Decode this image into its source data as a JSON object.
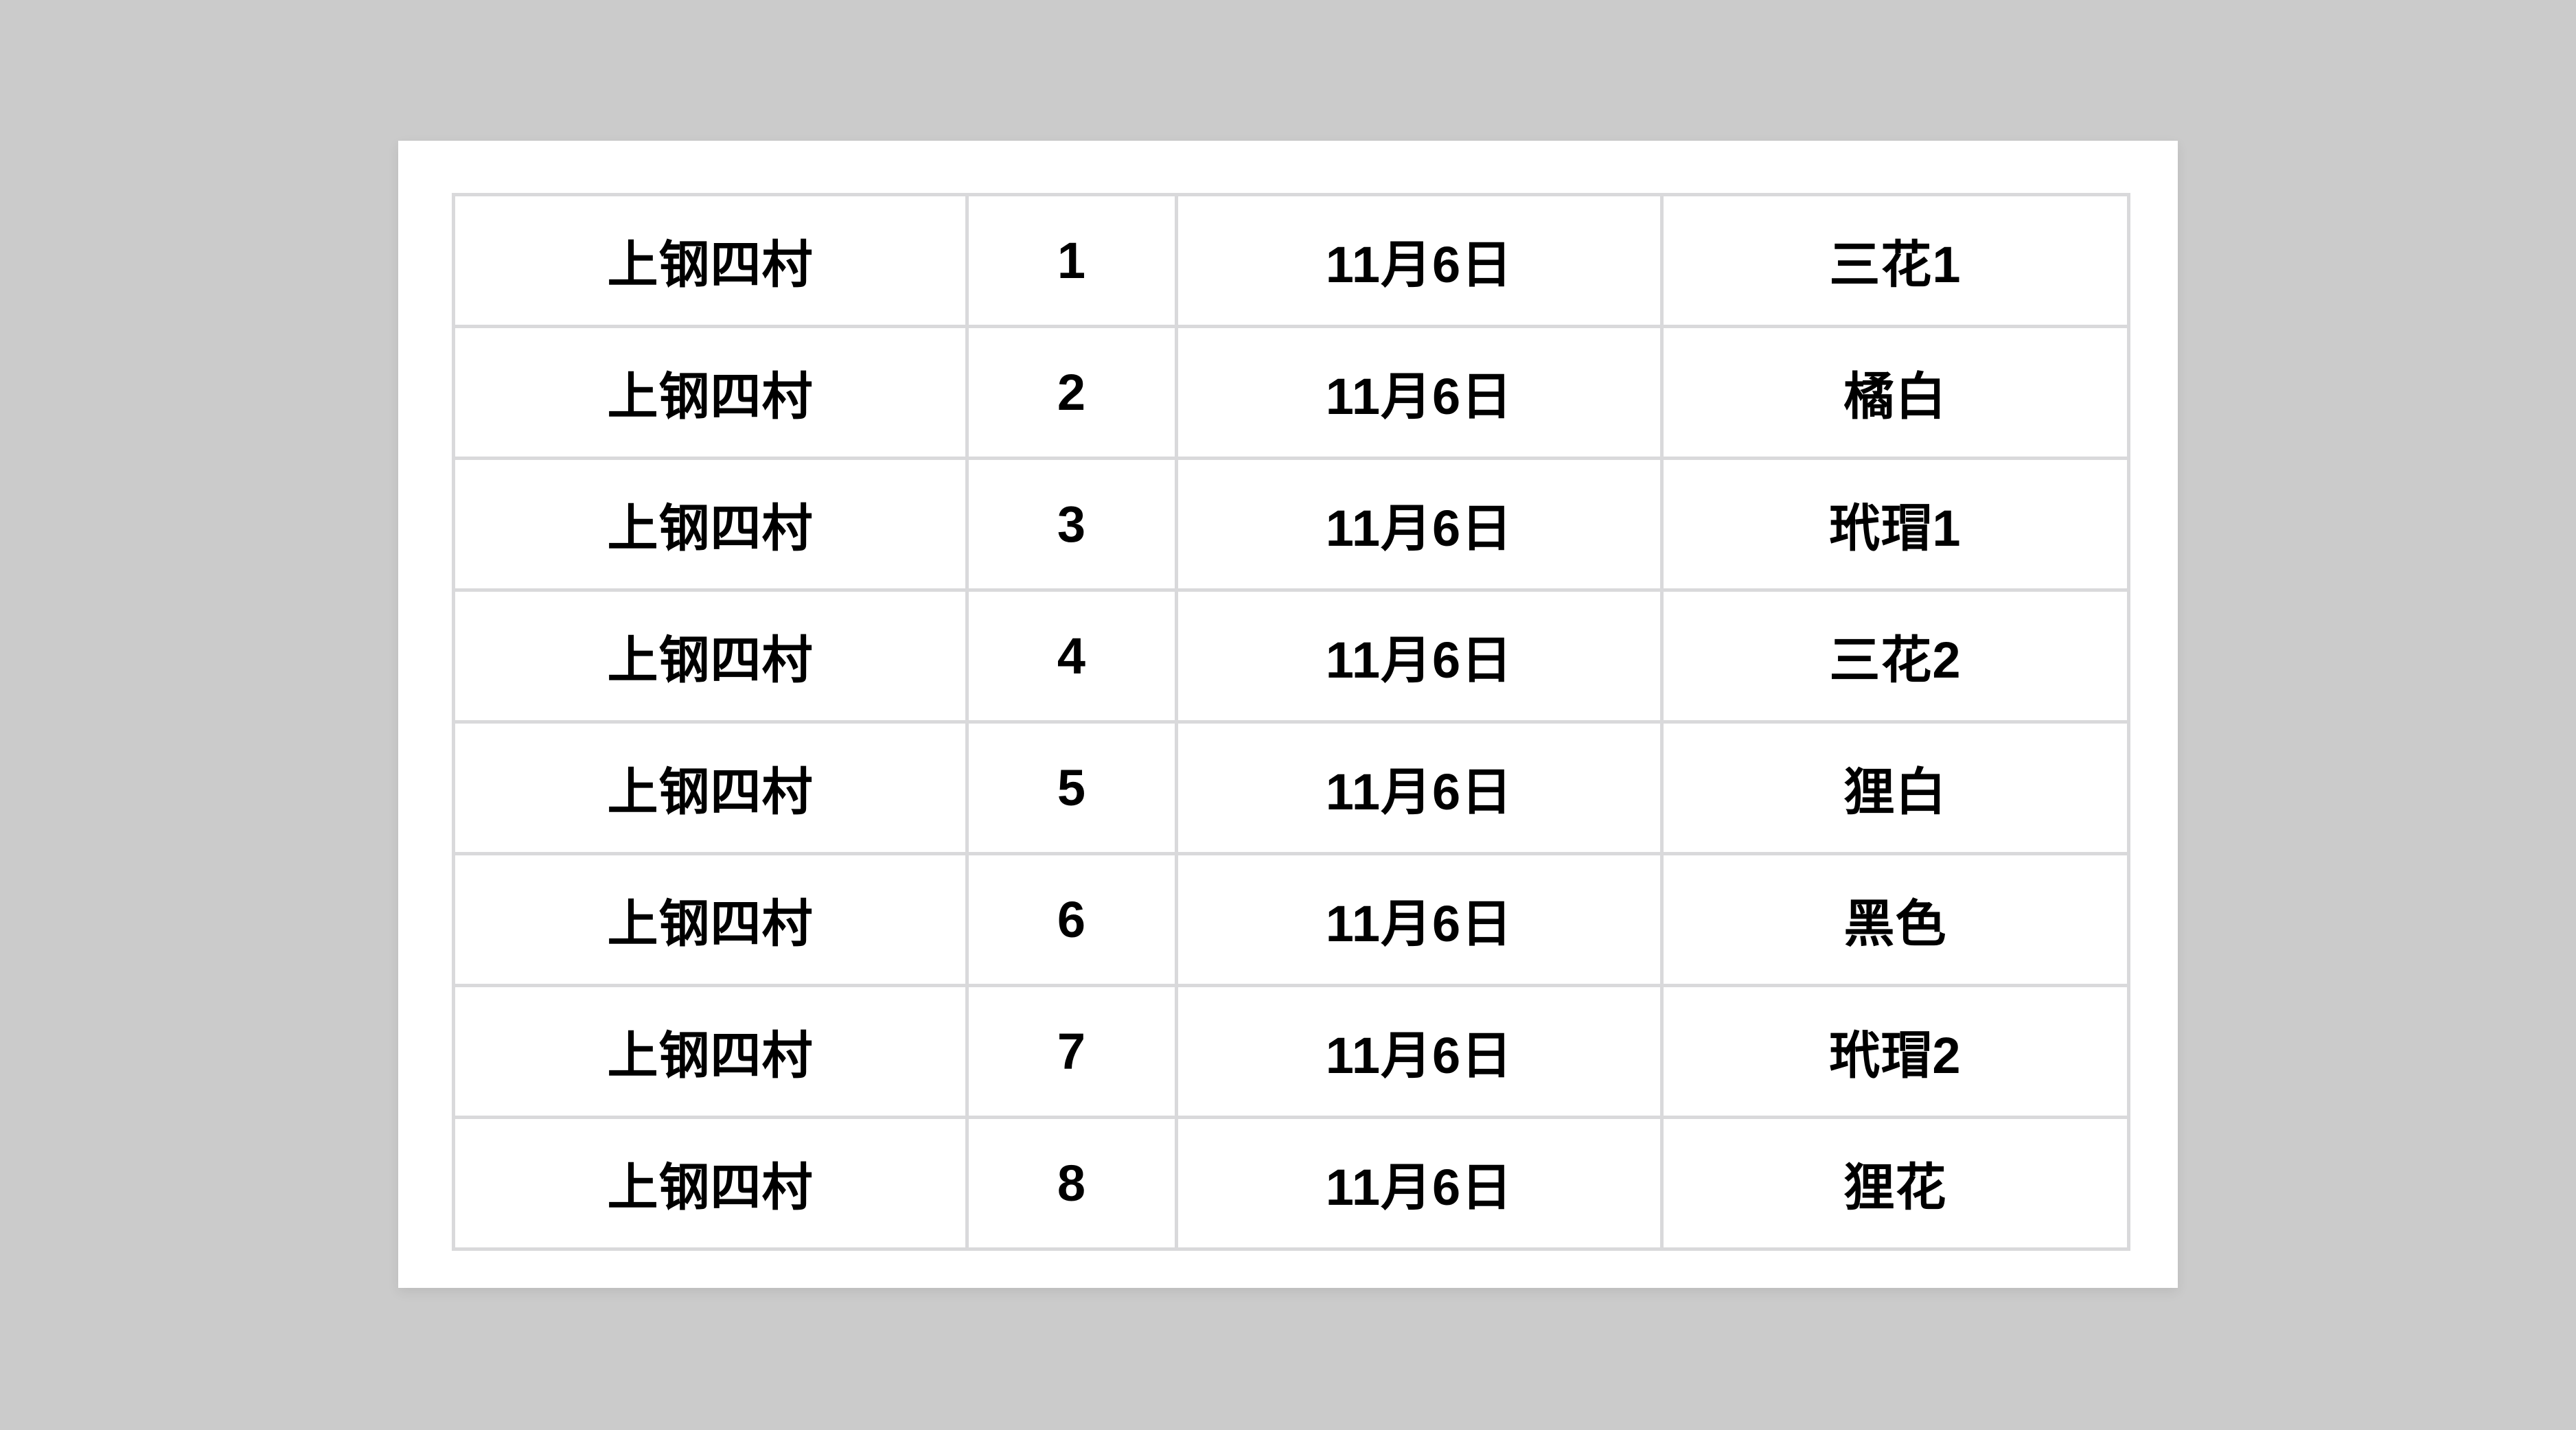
{
  "page": {
    "background_color": "#cbcbcb",
    "panel_color": "#ffffff",
    "grid_color": "#d9d9db",
    "text_color": "#000000"
  },
  "table": {
    "rows": [
      {
        "location": "上钢四村",
        "number": "1",
        "date": "11月6日",
        "name": "三花1"
      },
      {
        "location": "上钢四村",
        "number": "2",
        "date": "11月6日",
        "name": "橘白"
      },
      {
        "location": "上钢四村",
        "number": "3",
        "date": "11月6日",
        "name": "玳瑁1"
      },
      {
        "location": "上钢四村",
        "number": "4",
        "date": "11月6日",
        "name": "三花2"
      },
      {
        "location": "上钢四村",
        "number": "5",
        "date": "11月6日",
        "name": "狸白"
      },
      {
        "location": "上钢四村",
        "number": "6",
        "date": "11月6日",
        "name": "黑色"
      },
      {
        "location": "上钢四村",
        "number": "7",
        "date": "11月6日",
        "name": "玳瑁2"
      },
      {
        "location": "上钢四村",
        "number": "8",
        "date": "11月6日",
        "name": "狸花"
      }
    ]
  }
}
